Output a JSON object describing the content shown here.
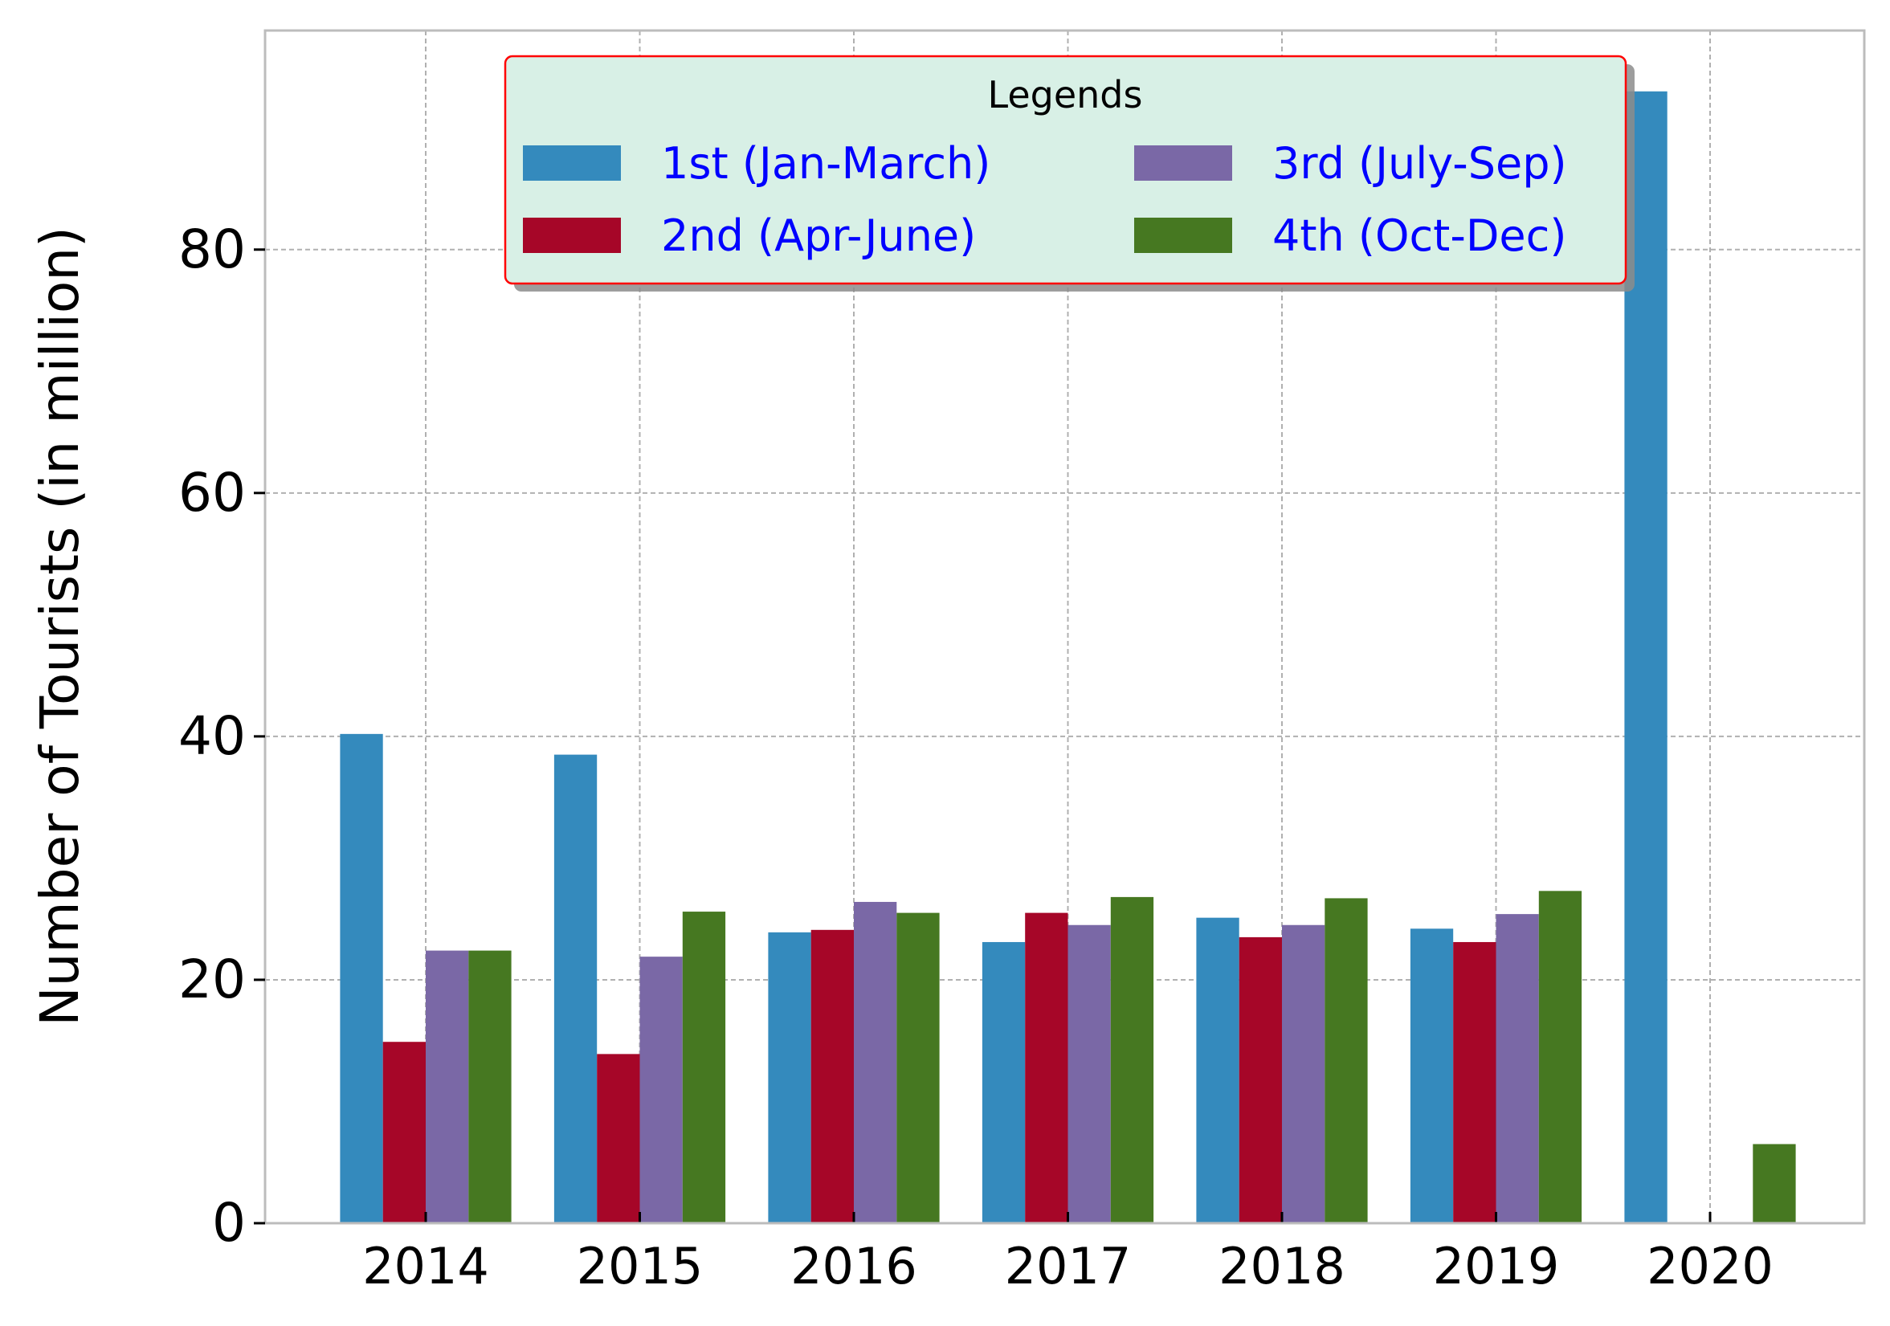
{
  "chart_data": {
    "type": "bar",
    "title": "",
    "xlabel": "",
    "ylabel": "Number of Tourists (in million)",
    "categories": [
      "2014",
      "2015",
      "2016",
      "2017",
      "2018",
      "2019",
      "2020"
    ],
    "ylim": [
      0,
      98
    ],
    "yticks": [
      0,
      20,
      40,
      60,
      80
    ],
    "grid": true,
    "legend": {
      "title": "Legends",
      "placement": "top-center",
      "columns": 2
    },
    "series": [
      {
        "name": "1st (Jan-March)",
        "color": "#348abd",
        "values": [
          40.2,
          38.5,
          23.9,
          23.1,
          25.1,
          24.2,
          93.0
        ]
      },
      {
        "name": "2nd (Apr-June)",
        "color": "#a60628",
        "values": [
          14.9,
          13.9,
          24.1,
          25.5,
          23.5,
          23.1,
          0.0
        ]
      },
      {
        "name": "3rd (July-Sep)",
        "color": "#7a68a6",
        "values": [
          22.4,
          21.9,
          26.4,
          24.5,
          24.5,
          25.4,
          0.1
        ]
      },
      {
        "name": "4th (Oct-Dec)",
        "color": "#467821",
        "values": [
          22.4,
          25.6,
          25.5,
          26.8,
          26.7,
          27.3,
          6.5
        ]
      }
    ]
  }
}
